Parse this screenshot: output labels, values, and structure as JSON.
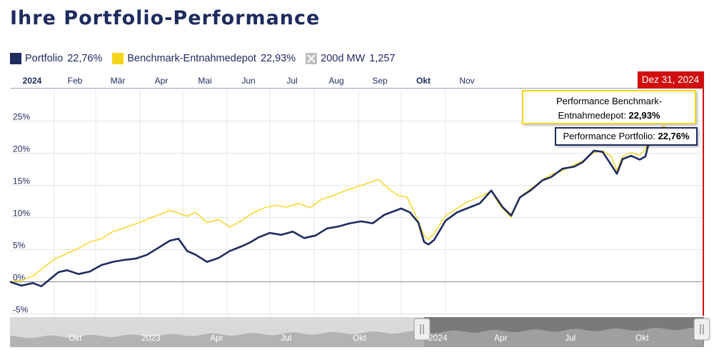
{
  "title": "Ihre Portfolio-Performance",
  "legend": [
    {
      "label": "Portfolio",
      "value": "22,76%",
      "color": "#1d2b5e",
      "icon": "square"
    },
    {
      "label": "Benchmark-Entnahmedepot",
      "value": "22,93%",
      "color": "#f5d51a",
      "icon": "square"
    },
    {
      "label": "200d MW",
      "value": "1,257",
      "color": "#bfbfbf",
      "icon": "x-square-icon"
    }
  ],
  "tooltips": {
    "benchmark_line1": "Performance Benchmark-",
    "benchmark_line2": "Entnahmedepot:",
    "benchmark_value": "22,93%",
    "portfolio_label": "Performance Portfolio:",
    "portfolio_value": "22,76%"
  },
  "crosshair_date": "Dez 31, 2024",
  "navigator": {
    "labels": [
      "Okt",
      "2023",
      "Apr",
      "Jul",
      "Okt",
      "2024",
      "Apr",
      "Jul",
      "Okt"
    ]
  },
  "chart_data": {
    "type": "line",
    "title": "Ihre Portfolio-Performance",
    "x_ticks": [
      "2024",
      "Feb",
      "Mär",
      "Apr",
      "Mai",
      "Jun",
      "Jul",
      "Aug",
      "Sep",
      "Okt",
      "Nov"
    ],
    "y_ticks": [
      "25%",
      "20%",
      "15%",
      "10%",
      "5%",
      "0%",
      "-5%"
    ],
    "ylim": [
      -5,
      28
    ],
    "x_unit": "days since 2024-01-01",
    "grid": true,
    "legend_position": "top-left",
    "series": [
      {
        "name": "Portfolio",
        "color": "#1d2b5e",
        "points": [
          [
            0,
            0
          ],
          [
            8,
            -0.6
          ],
          [
            16,
            -0.2
          ],
          [
            22,
            -0.7
          ],
          [
            28,
            0.4
          ],
          [
            34,
            1.5
          ],
          [
            40,
            1.8
          ],
          [
            48,
            1.2
          ],
          [
            56,
            1.6
          ],
          [
            64,
            2.6
          ],
          [
            72,
            3.1
          ],
          [
            80,
            3.4
          ],
          [
            88,
            3.6
          ],
          [
            96,
            4.2
          ],
          [
            104,
            5.3
          ],
          [
            112,
            6.4
          ],
          [
            118,
            6.7
          ],
          [
            124,
            4.8
          ],
          [
            130,
            4.2
          ],
          [
            138,
            3.1
          ],
          [
            146,
            3.7
          ],
          [
            154,
            4.8
          ],
          [
            162,
            5.5
          ],
          [
            168,
            6.1
          ],
          [
            174,
            6.9
          ],
          [
            182,
            7.6
          ],
          [
            190,
            7.3
          ],
          [
            198,
            7.8
          ],
          [
            206,
            6.8
          ],
          [
            214,
            7.2
          ],
          [
            222,
            8.3
          ],
          [
            230,
            8.6
          ],
          [
            238,
            9.1
          ],
          [
            246,
            9.4
          ],
          [
            254,
            9.1
          ],
          [
            262,
            10.4
          ],
          [
            268,
            10.9
          ],
          [
            274,
            11.4
          ],
          [
            280,
            10.8
          ],
          [
            286,
            9.2
          ],
          [
            290,
            6.2
          ],
          [
            293,
            5.8
          ],
          [
            297,
            6.5
          ],
          [
            305,
            9.5
          ],
          [
            313,
            10.8
          ],
          [
            321,
            11.5
          ],
          [
            329,
            12.2
          ],
          [
            337,
            14.2
          ],
          [
            345,
            11.6
          ],
          [
            351,
            10.3
          ],
          [
            357,
            13.1
          ],
          [
            365,
            14.3
          ],
          [
            373,
            15.8
          ],
          [
            379,
            16.3
          ],
          [
            387,
            17.6
          ],
          [
            395,
            17.9
          ],
          [
            401,
            18.6
          ],
          [
            409,
            20.4
          ],
          [
            415,
            20.2
          ],
          [
            421,
            18.2
          ],
          [
            425,
            16.8
          ],
          [
            429,
            19.1
          ],
          [
            435,
            19.6
          ],
          [
            441,
            19.0
          ],
          [
            445,
            19.5
          ],
          [
            448,
            22.2
          ],
          [
            452,
            23.1
          ],
          [
            458,
            23.4
          ],
          [
            462,
            22.7
          ],
          [
            466,
            22.76
          ]
        ]
      },
      {
        "name": "Benchmark-Entnahmedepot",
        "color": "#f5d51a",
        "points": [
          [
            0,
            0
          ],
          [
            8,
            0.2
          ],
          [
            16,
            0.9
          ],
          [
            24,
            2.3
          ],
          [
            32,
            3.6
          ],
          [
            40,
            4.4
          ],
          [
            48,
            5.2
          ],
          [
            56,
            6.2
          ],
          [
            64,
            6.7
          ],
          [
            72,
            7.8
          ],
          [
            80,
            8.4
          ],
          [
            88,
            9.0
          ],
          [
            96,
            9.7
          ],
          [
            104,
            10.4
          ],
          [
            112,
            11.1
          ],
          [
            118,
            10.7
          ],
          [
            124,
            10.2
          ],
          [
            130,
            10.8
          ],
          [
            138,
            9.2
          ],
          [
            146,
            9.7
          ],
          [
            154,
            8.5
          ],
          [
            162,
            9.5
          ],
          [
            170,
            10.7
          ],
          [
            178,
            11.5
          ],
          [
            186,
            11.9
          ],
          [
            194,
            11.6
          ],
          [
            202,
            12.2
          ],
          [
            210,
            11.5
          ],
          [
            218,
            12.8
          ],
          [
            226,
            13.4
          ],
          [
            234,
            14.1
          ],
          [
            242,
            14.7
          ],
          [
            250,
            15.3
          ],
          [
            258,
            15.9
          ],
          [
            266,
            14.3
          ],
          [
            272,
            13.4
          ],
          [
            278,
            13.2
          ],
          [
            284,
            10.4
          ],
          [
            290,
            7.2
          ],
          [
            293,
            6.6
          ],
          [
            297,
            7.5
          ],
          [
            305,
            10.3
          ],
          [
            313,
            11.4
          ],
          [
            321,
            12.5
          ],
          [
            329,
            13.2
          ],
          [
            337,
            14.1
          ],
          [
            343,
            11.9
          ],
          [
            351,
            10.0
          ],
          [
            357,
            13.2
          ],
          [
            365,
            14.5
          ],
          [
            373,
            15.9
          ],
          [
            379,
            16.7
          ],
          [
            387,
            17.3
          ],
          [
            395,
            18.2
          ],
          [
            401,
            18.8
          ],
          [
            409,
            20.1
          ],
          [
            415,
            20.4
          ],
          [
            421,
            19.5
          ],
          [
            425,
            17.3
          ],
          [
            429,
            19.5
          ],
          [
            435,
            20.1
          ],
          [
            441,
            19.7
          ],
          [
            445,
            20.6
          ],
          [
            448,
            22.6
          ],
          [
            452,
            23.6
          ],
          [
            458,
            24.2
          ],
          [
            462,
            23.4
          ],
          [
            466,
            22.93
          ]
        ]
      }
    ]
  }
}
